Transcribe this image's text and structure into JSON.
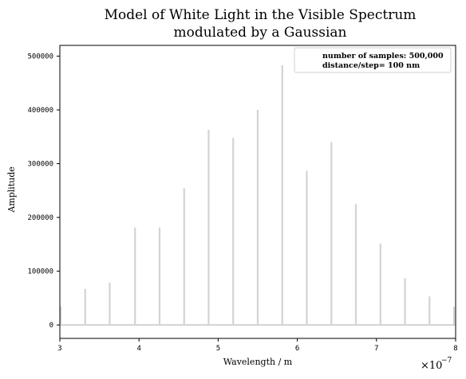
{
  "chart_data": {
    "type": "bar",
    "title_lines": [
      "Model of White Light in the Visible Spectrum",
      "modulated by a Gaussian"
    ],
    "xlabel": "Wavelength / m",
    "ylabel": "Amplitude",
    "x_multiplier": "×10",
    "x_multiplier_exp": "−7",
    "xlim": [
      3,
      8
    ],
    "ylim": [
      -25000,
      520000
    ],
    "xticks": [
      3,
      4,
      5,
      6,
      7,
      8
    ],
    "yticks": [
      0,
      100000,
      200000,
      300000,
      400000,
      500000
    ],
    "ytick_labels": [
      "0",
      "100000",
      "200000",
      "300000",
      "400000",
      "500000"
    ],
    "legend": {
      "placement": "top-right",
      "lines": [
        "number of samples: 500,000",
        "distance/step= 100 nm"
      ]
    },
    "series": [
      {
        "x": [
          3.0,
          3.32,
          3.63,
          3.95,
          4.26,
          4.57,
          4.88,
          5.19,
          5.5,
          5.81,
          6.12,
          6.43,
          6.74,
          7.05,
          7.36,
          7.67,
          7.98
        ],
        "values": [
          35000,
          67000,
          79000,
          181000,
          181000,
          254000,
          363000,
          348000,
          400000,
          483000,
          287000,
          340000,
          225000,
          151000,
          87000,
          53000,
          34000
        ]
      }
    ],
    "baseline": 0,
    "grid": false,
    "color": "#d3d3d3"
  }
}
